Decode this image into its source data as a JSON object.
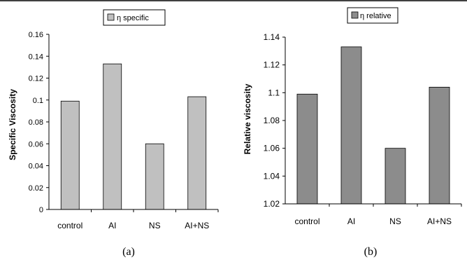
{
  "chart_data": [
    {
      "type": "bar",
      "legend": "η specific",
      "legend_position": "top",
      "categories": [
        "control",
        "AI",
        "NS",
        "AI+NS"
      ],
      "values": [
        0.099,
        0.133,
        0.06,
        0.103
      ],
      "ylabel": "Specific Viscosity",
      "ylim": [
        0,
        0.16
      ],
      "yticks": [
        "0",
        "0.02",
        "0.04",
        "0.06",
        "0.08",
        "0.1",
        "0.12",
        "0.14",
        "0.16"
      ],
      "bar_color": "#c0c0c0",
      "grid": false,
      "caption": "(a)"
    },
    {
      "type": "bar",
      "legend": "η relative",
      "legend_position": "top",
      "categories": [
        "control",
        "AI",
        "NS",
        "AI+NS"
      ],
      "values": [
        1.099,
        1.133,
        1.06,
        1.104
      ],
      "ylabel": "Relative viscosity",
      "ylim": [
        1.02,
        1.14
      ],
      "yticks": [
        "1.02",
        "1.04",
        "1.06",
        "1.08",
        "1.1",
        "1.12",
        "1.14"
      ],
      "bar_color": "#8c8c8c",
      "grid": false,
      "caption": "(b)"
    }
  ]
}
